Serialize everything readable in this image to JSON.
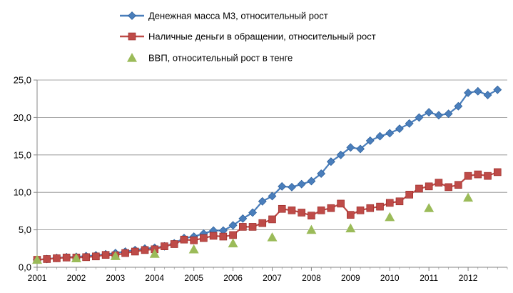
{
  "chart_data": {
    "type": "line",
    "title": "",
    "xlabel": "",
    "ylabel": "",
    "ylim": [
      0,
      25
    ],
    "y_ticks": [
      "0,0",
      "5,0",
      "10,0",
      "15,0",
      "20,0",
      "25,0"
    ],
    "x_tick_labels": [
      "2001",
      "2002",
      "2003",
      "2004",
      "2005",
      "2006",
      "2007",
      "2008",
      "2009",
      "2010",
      "2011",
      "2012"
    ],
    "x_range": [
      2001,
      2013.0
    ],
    "grid": "horizontal",
    "legend_position": "top",
    "series": [
      {
        "name": "Денежная масса М3, относительный рост",
        "color": "#4a7ebb",
        "marker": "diamond",
        "x": [
          2001.0,
          2001.25,
          2001.5,
          2001.75,
          2002.0,
          2002.25,
          2002.5,
          2002.75,
          2003.0,
          2003.25,
          2003.5,
          2003.75,
          2004.0,
          2004.25,
          2004.5,
          2004.75,
          2005.0,
          2005.25,
          2005.5,
          2005.75,
          2006.0,
          2006.25,
          2006.5,
          2006.75,
          2007.0,
          2007.25,
          2007.5,
          2007.75,
          2008.0,
          2008.25,
          2008.5,
          2008.75,
          2009.0,
          2009.25,
          2009.5,
          2009.75,
          2010.0,
          2010.25,
          2010.5,
          2010.75,
          2011.0,
          2011.25,
          2011.5,
          2011.75,
          2012.0,
          2012.25,
          2012.5,
          2012.75
        ],
        "values": [
          1.0,
          1.1,
          1.25,
          1.35,
          1.4,
          1.5,
          1.6,
          1.75,
          1.9,
          2.1,
          2.3,
          2.5,
          2.6,
          2.8,
          3.2,
          3.9,
          4.1,
          4.5,
          4.9,
          4.9,
          5.6,
          6.5,
          7.3,
          8.8,
          9.5,
          10.8,
          10.7,
          11.1,
          11.5,
          12.5,
          14.1,
          15.0,
          16.0,
          15.8,
          16.9,
          17.5,
          17.9,
          18.5,
          19.2,
          20.0,
          20.7,
          20.3,
          20.5,
          21.5,
          23.3,
          23.5,
          23.0,
          23.7
        ]
      },
      {
        "name": "Наличные деньги в обращении, относительный рост",
        "color": "#be4b48",
        "marker": "square",
        "x": [
          2001.0,
          2001.25,
          2001.5,
          2001.75,
          2002.0,
          2002.25,
          2002.5,
          2002.75,
          2003.0,
          2003.25,
          2003.5,
          2003.75,
          2004.0,
          2004.25,
          2004.5,
          2004.75,
          2005.0,
          2005.25,
          2005.5,
          2005.75,
          2006.0,
          2006.25,
          2006.5,
          2006.75,
          2007.0,
          2007.25,
          2007.5,
          2007.75,
          2008.0,
          2008.25,
          2008.5,
          2008.75,
          2009.0,
          2009.25,
          2009.5,
          2009.75,
          2010.0,
          2010.25,
          2010.5,
          2010.75,
          2011.0,
          2011.25,
          2011.5,
          2011.75,
          2012.0,
          2012.25,
          2012.5,
          2012.75
        ],
        "values": [
          1.0,
          1.1,
          1.2,
          1.3,
          1.3,
          1.35,
          1.45,
          1.65,
          1.6,
          1.9,
          2.1,
          2.3,
          2.4,
          2.8,
          3.1,
          3.7,
          3.6,
          3.9,
          4.2,
          4.1,
          4.3,
          5.4,
          5.4,
          5.9,
          6.4,
          7.8,
          7.6,
          7.3,
          6.9,
          7.6,
          7.9,
          8.5,
          7.0,
          7.6,
          7.9,
          8.1,
          8.6,
          8.8,
          9.7,
          10.5,
          10.8,
          11.3,
          10.7,
          11.0,
          12.2,
          12.4,
          12.2,
          12.7
        ]
      },
      {
        "name": "ВВП, относительный рост в тенге",
        "color": "#9bbb59",
        "marker": "triangle",
        "x": [
          2001.0,
          2002.0,
          2003.0,
          2004.0,
          2005.0,
          2006.0,
          2007.0,
          2008.0,
          2009.0,
          2010.0,
          2011.0,
          2012.0
        ],
        "values": [
          1.0,
          1.2,
          1.5,
          1.8,
          2.4,
          3.2,
          4.0,
          5.0,
          5.2,
          6.7,
          7.9,
          9.3
        ]
      }
    ]
  }
}
